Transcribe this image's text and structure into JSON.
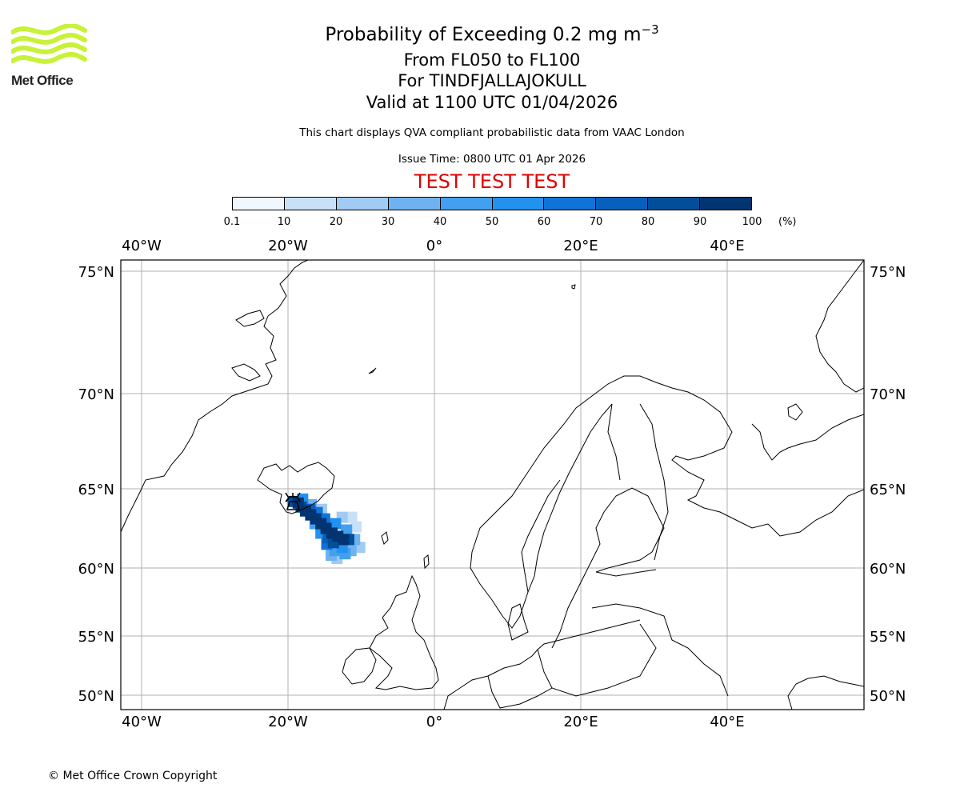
{
  "logo": {
    "text": "Met Office",
    "color": "#c8f238"
  },
  "title": {
    "line1_prefix": "Probability of Exceeding 0.2 mg m",
    "line1_sup": "−3",
    "line2": "From FL050 to FL100",
    "line3": "For TINDFJALLAJOKULL",
    "line4": "Valid at 1100 UTC 01/04/2026"
  },
  "subtitle": "This chart displays QVA compliant probabilistic data from VAAC London",
  "issue_time": "Issue Time: 0800 UTC 01 Apr 2026",
  "test_banner": "TEST TEST TEST",
  "colorbar": {
    "ticks": [
      "0.1",
      "10",
      "20",
      "30",
      "40",
      "50",
      "60",
      "70",
      "80",
      "90",
      "100"
    ],
    "unit": "(%)",
    "colors": [
      "#f1f7ff",
      "#c8e0f8",
      "#a2cbf3",
      "#6fb2ef",
      "#43a0f0",
      "#2391ee",
      "#0f73d8",
      "#0760bc",
      "#034e98",
      "#023471"
    ]
  },
  "axes": {
    "lon_labels": [
      "40°W",
      "20°W",
      "0°",
      "20°E",
      "40°E"
    ],
    "lat_labels": [
      "75°N",
      "70°N",
      "65°N",
      "60°N",
      "55°N",
      "50°N"
    ]
  },
  "map_colors": {
    "grid": "#b0b0b0",
    "coast": "#000000"
  },
  "plume_cells": [
    {
      "lon": -19.3,
      "lat": 64.2,
      "p": 85
    },
    {
      "lon": -18.6,
      "lat": 64.1,
      "p": 90
    },
    {
      "lon": -18.2,
      "lat": 63.85,
      "p": 80
    },
    {
      "lon": -17.6,
      "lat": 63.6,
      "p": 95
    },
    {
      "lon": -16.9,
      "lat": 63.35,
      "p": 95
    },
    {
      "lon": -16.2,
      "lat": 63.1,
      "p": 95
    },
    {
      "lon": -15.5,
      "lat": 62.8,
      "p": 95
    },
    {
      "lon": -14.8,
      "lat": 62.5,
      "p": 95
    },
    {
      "lon": -14.0,
      "lat": 62.2,
      "p": 95
    },
    {
      "lon": -13.2,
      "lat": 62.0,
      "p": 95
    },
    {
      "lon": -12.4,
      "lat": 61.8,
      "p": 95
    },
    {
      "lon": -11.7,
      "lat": 61.8,
      "p": 80
    },
    {
      "lon": -13.8,
      "lat": 61.6,
      "p": 85
    },
    {
      "lon": -14.5,
      "lat": 61.9,
      "p": 75
    },
    {
      "lon": -17.0,
      "lat": 63.7,
      "p": 70
    },
    {
      "lon": -16.0,
      "lat": 63.5,
      "p": 65
    },
    {
      "lon": -15.0,
      "lat": 63.1,
      "p": 60
    },
    {
      "lon": -13.5,
      "lat": 62.8,
      "p": 55
    },
    {
      "lon": -12.0,
      "lat": 62.4,
      "p": 45
    },
    {
      "lon": -15.5,
      "lat": 62.2,
      "p": 55
    },
    {
      "lon": -14.7,
      "lat": 61.5,
      "p": 60
    },
    {
      "lon": -13.6,
      "lat": 61.1,
      "p": 45
    },
    {
      "lon": -12.6,
      "lat": 61.3,
      "p": 55
    },
    {
      "lon": -10.9,
      "lat": 61.8,
      "p": 35
    },
    {
      "lon": -10.7,
      "lat": 62.6,
      "p": 15
    },
    {
      "lon": -11.3,
      "lat": 63.2,
      "p": 10
    },
    {
      "lon": -12.6,
      "lat": 63.2,
      "p": 20
    },
    {
      "lon": -14.1,
      "lat": 60.8,
      "p": 35
    },
    {
      "lon": -13.3,
      "lat": 60.6,
      "p": 25
    },
    {
      "lon": -11.4,
      "lat": 61.1,
      "p": 30
    },
    {
      "lon": -18.0,
      "lat": 64.35,
      "p": 50
    },
    {
      "lon": -16.8,
      "lat": 64.0,
      "p": 35
    },
    {
      "lon": -15.4,
      "lat": 63.7,
      "p": 25
    },
    {
      "lon": -10.2,
      "lat": 61.3,
      "p": 20
    },
    {
      "lon": -16.3,
      "lat": 62.8,
      "p": 45
    },
    {
      "lon": -12.2,
      "lat": 60.9,
      "p": 40
    }
  ],
  "copyright": "© Met Office Crown Copyright"
}
